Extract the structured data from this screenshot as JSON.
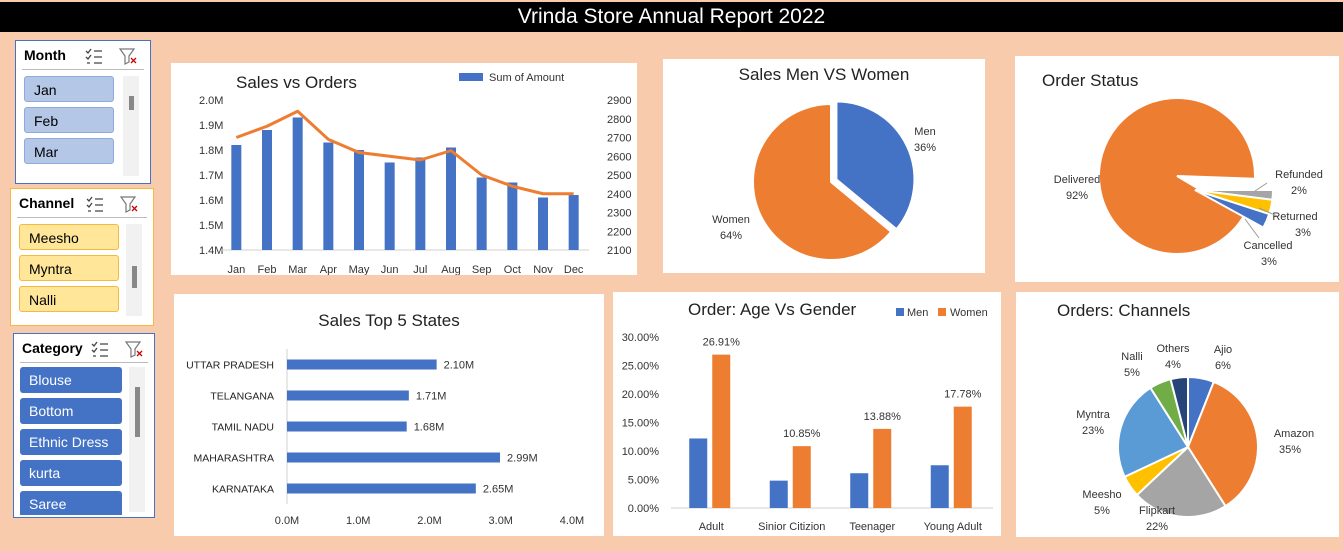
{
  "title": "Vrinda Store Annual Report 2022",
  "colors": {
    "men": "#4472c4",
    "women": "#ed7d31",
    "grey": "#a5a5a5",
    "yellow": "#ffc000",
    "lightblue": "#5b9bd5",
    "green": "#70ad47",
    "navy": "#264478"
  },
  "slicers": {
    "month": {
      "label": "Month",
      "items": [
        "Jan",
        "Feb",
        "Mar"
      ]
    },
    "channel": {
      "label": "Channel",
      "items": [
        "Meesho",
        "Myntra",
        "Nalli"
      ]
    },
    "category": {
      "label": "Category",
      "items": [
        "Blouse",
        "Bottom",
        "Ethnic Dress",
        "kurta",
        "Saree"
      ]
    }
  },
  "chart_data": [
    {
      "type": "bar+line",
      "title": "Sales vs Orders",
      "legend": "Sum of Amount",
      "categories": [
        "Jan",
        "Feb",
        "Mar",
        "Apr",
        "May",
        "Jun",
        "Jul",
        "Aug",
        "Sep",
        "Oct",
        "Nov",
        "Dec"
      ],
      "series": [
        {
          "name": "Sum of Amount",
          "axis": "left",
          "values": [
            1.82,
            1.88,
            1.93,
            1.83,
            1.8,
            1.75,
            1.77,
            1.81,
            1.69,
            1.67,
            1.61,
            1.62
          ]
        },
        {
          "axis": "right",
          "values": [
            2700,
            2760,
            2840,
            2690,
            2620,
            2600,
            2580,
            2630,
            2500,
            2440,
            2400,
            2400
          ]
        }
      ],
      "ylim_left": [
        1.4,
        2.0
      ],
      "yticks_left": [
        "2.0M",
        "1.9M",
        "1.8M",
        "1.7M",
        "1.6M",
        "1.5M",
        "1.4M"
      ],
      "ylim_right": [
        2100,
        2900
      ],
      "yticks_right": [
        "2900",
        "2800",
        "2700",
        "2600",
        "2500",
        "2400",
        "2300",
        "2200",
        "2100"
      ]
    },
    {
      "type": "pie",
      "title": "Sales Men VS Women",
      "labels": [
        "Men",
        "Women"
      ],
      "pcts": [
        "36%",
        "64%"
      ],
      "values": [
        36,
        64
      ]
    },
    {
      "type": "pie",
      "title": "Order Status",
      "labels": [
        "Delivered",
        "Refunded",
        "Returned",
        "Cancelled"
      ],
      "pcts": [
        "92%",
        "2%",
        "3%",
        "3%"
      ],
      "values": [
        92,
        2,
        3,
        3
      ]
    },
    {
      "type": "bar",
      "title": "Sales Top 5 States",
      "categories": [
        "UTTAR PRADESH",
        "TELANGANA",
        "TAMIL NADU",
        "MAHARASHTRA",
        "KARNATAKA"
      ],
      "values": [
        2.1,
        1.71,
        1.68,
        2.99,
        2.65
      ],
      "value_labels": [
        "2.10M",
        "1.71M",
        "1.68M",
        "2.99M",
        "2.65M"
      ],
      "xlim": [
        0,
        4.0
      ],
      "xticks": [
        "0.0M",
        "1.0M",
        "2.0M",
        "3.0M",
        "4.0M"
      ]
    },
    {
      "type": "bar",
      "title": "Order: Age Vs Gender",
      "categories": [
        "Adult",
        "Sinior Citizion",
        "Teenager",
        "Young Adult"
      ],
      "series": [
        {
          "name": "Men",
          "values": [
            12.2,
            4.8,
            6.1,
            7.5
          ]
        },
        {
          "name": "Women",
          "values": [
            26.91,
            10.85,
            13.88,
            17.78
          ],
          "labels": [
            "26.91%",
            "10.85%",
            "13.88%",
            "17.78%"
          ]
        }
      ],
      "ylim": [
        0,
        30
      ],
      "yticks": [
        "30.00%",
        "25.00%",
        "20.00%",
        "15.00%",
        "10.00%",
        "5.00%",
        "0.00%"
      ]
    },
    {
      "type": "pie",
      "title": "Orders: Channels",
      "labels": [
        "Ajio",
        "Amazon",
        "Flipkart",
        "Meesho",
        "Myntra",
        "Nalli",
        "Others"
      ],
      "pcts": [
        "6%",
        "35%",
        "22%",
        "5%",
        "23%",
        "5%",
        "4%"
      ],
      "values": [
        6,
        35,
        22,
        5,
        23,
        5,
        4
      ]
    }
  ]
}
